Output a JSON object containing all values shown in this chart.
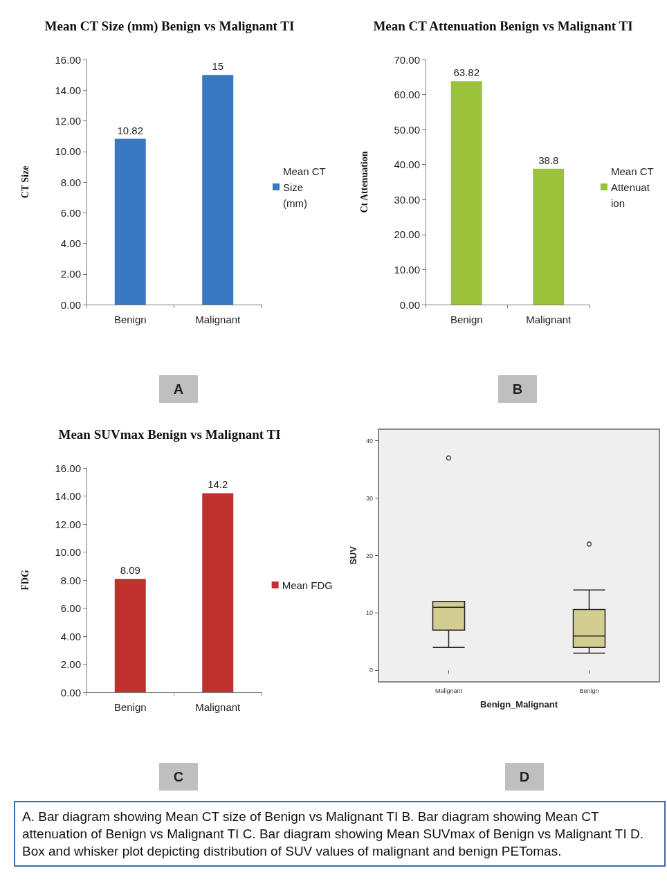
{
  "chart_data": [
    {
      "type": "bar",
      "title": "Mean CT Size (mm) Benign vs Malignant TI",
      "ylabel": "CT Size",
      "categories": [
        "Benign",
        "Malignant"
      ],
      "series": [
        {
          "name": "Mean CT Size (mm)",
          "color": "#3a78c2",
          "values": [
            10.82,
            15
          ]
        }
      ],
      "ylim": [
        0,
        16
      ],
      "yticks": [
        {
          "value": 0,
          "label": "0.00"
        },
        {
          "value": 2,
          "label": "2.00"
        },
        {
          "value": 4,
          "label": "4.00"
        },
        {
          "value": 6,
          "label": "6.00"
        },
        {
          "value": 8,
          "label": "8.00"
        },
        {
          "value": 10,
          "label": "10.00"
        },
        {
          "value": 12,
          "label": "12.00"
        },
        {
          "value": 14,
          "label": "14.00"
        },
        {
          "value": 16,
          "label": "16.00"
        }
      ],
      "data_labels": true,
      "legend": "right",
      "annotations": [
        "A"
      ]
    },
    {
      "type": "bar",
      "title": "Mean CT Attenuation Benign vs Malignant TI",
      "ylabel": "Ct Attenuation",
      "categories": [
        "Benign",
        "Malignant"
      ],
      "series": [
        {
          "name": "Mean CT Attenuation",
          "color": "#9bc23a",
          "values": [
            63.82,
            38.8
          ]
        }
      ],
      "ylim": [
        0,
        70
      ],
      "yticks": [
        {
          "value": 0,
          "label": "0.00"
        },
        {
          "value": 10,
          "label": "10.00"
        },
        {
          "value": 20,
          "label": "20.00"
        },
        {
          "value": 30,
          "label": "30.00"
        },
        {
          "value": 40,
          "label": "40.00"
        },
        {
          "value": 50,
          "label": "50.00"
        },
        {
          "value": 60,
          "label": "60.00"
        },
        {
          "value": 70,
          "label": "70.00"
        }
      ],
      "data_labels": true,
      "legend": "right",
      "annotations": [
        "B"
      ]
    },
    {
      "type": "bar",
      "title": "Mean SUVmax Benign vs Malignant TI",
      "ylabel": "FDG",
      "categories": [
        "Benign",
        "Malignant"
      ],
      "series": [
        {
          "name": "Mean FDG",
          "color": "#c0302f",
          "values": [
            8.09,
            14.2
          ]
        }
      ],
      "ylim": [
        0,
        16
      ],
      "yticks": [
        {
          "value": 0,
          "label": "0.00"
        },
        {
          "value": 2,
          "label": "2.00"
        },
        {
          "value": 4,
          "label": "4.00"
        },
        {
          "value": 6,
          "label": "6.00"
        },
        {
          "value": 8,
          "label": "8.00"
        },
        {
          "value": 10,
          "label": "10.00"
        },
        {
          "value": 12,
          "label": "12.00"
        },
        {
          "value": 14,
          "label": "14.00"
        },
        {
          "value": 16,
          "label": "16.00"
        }
      ],
      "data_labels": true,
      "legend": "right",
      "annotations": [
        "C"
      ]
    },
    {
      "type": "box",
      "xlabel": "Benign_Malignant",
      "ylabel": "SUV",
      "categories": [
        "Malignant",
        "Benign"
      ],
      "color": "#d4cd92",
      "boxes": [
        {
          "low": 4,
          "q1": 7,
          "median": 11,
          "q3": 12,
          "high": 12,
          "outliers": [
            37
          ]
        },
        {
          "low": 3,
          "q1": 4,
          "median": 6,
          "q3": 10.6,
          "high": 14,
          "outliers": [
            22
          ]
        }
      ],
      "ylim": [
        -2,
        42
      ],
      "yticks": [
        0,
        10,
        20,
        30,
        40
      ],
      "annotations": [
        "D",
        "A. Bar diagram showing Mean CT size of Benign vs Malignant TI  B. Bar diagram showing Mean CT attenuation of Benign vs Malignant TI C. Bar diagram showing Mean SUVmax of Benign vs Malignant TI D. Box and whisker plot depicting distribution of SUV values of malignant and benign PETomas."
      ]
    }
  ]
}
